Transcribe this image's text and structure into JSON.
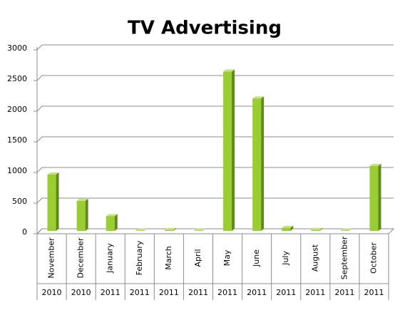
{
  "chart_data": {
    "type": "bar",
    "title": "TV Advertising",
    "categories": [
      "November",
      "December",
      "January",
      "February",
      "March",
      "April",
      "May",
      "June",
      "July",
      "August",
      "September",
      "October"
    ],
    "category_groups": [
      "2010",
      "2010",
      "2011",
      "2011",
      "2011",
      "2011",
      "2011",
      "2011",
      "2011",
      "2011",
      "2011",
      "2011"
    ],
    "values": [
      920,
      490,
      240,
      5,
      15,
      5,
      2600,
      2160,
      50,
      15,
      5,
      1060
    ],
    "color": "#9acd32",
    "ylim": [
      0,
      3000
    ],
    "yticks": [
      0,
      500,
      1000,
      1500,
      2000,
      2500,
      3000
    ],
    "grid": true
  }
}
